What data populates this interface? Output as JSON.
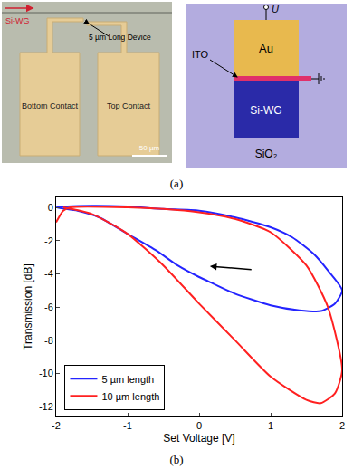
{
  "figure": {
    "panel_a": {
      "label": "(a)",
      "micrograph": {
        "waveguide": "Si-WG",
        "device": "5 µm Long Device",
        "bottom_contact": "Bottom Contact",
        "top_contact": "Top Contact",
        "scale_bar": "50 µm"
      },
      "schematic": {
        "voltage": "U",
        "electrode": "Au",
        "layer": "ITO",
        "waveguide": "Si-WG",
        "cladding": "SiO₂"
      }
    },
    "panel_b": {
      "label": "(b)"
    }
  },
  "chart_data": {
    "type": "line",
    "x_label": "Set Voltage [V]",
    "y_label": "Transmission [dB]",
    "xlim": [
      -2,
      2
    ],
    "xticks": [
      -2,
      -1,
      0,
      1,
      2
    ],
    "ylim": [
      -12.6,
      0.6
    ],
    "yticks": [
      -12,
      -10,
      -8,
      -6,
      -4,
      -2,
      0
    ],
    "legend": "lower left",
    "series": [
      {
        "name": "5 µm length",
        "color": "#2424ff",
        "x": [
          -2,
          -1.5,
          -1,
          -0.5,
          0,
          0.5,
          1.0,
          1.3,
          1.6,
          1.8,
          2.0,
          1.9,
          1.7,
          1.4,
          1.0,
          0.5,
          0.2,
          0,
          -0.3,
          -0.6,
          -1.0,
          -1.4,
          -1.7,
          -2
        ],
        "values": [
          0,
          0.1,
          0.05,
          -0.1,
          -0.2,
          -0.6,
          -1.2,
          -1.8,
          -2.8,
          -3.8,
          -5.0,
          -5.8,
          -6.25,
          -6.2,
          -5.9,
          -5.2,
          -4.6,
          -4.2,
          -3.5,
          -2.6,
          -1.6,
          -0.6,
          -0.2,
          0
        ]
      },
      {
        "name": "10 µm length",
        "color": "#ff2020",
        "x": [
          -2,
          -1.9,
          -1.8,
          -1,
          -0.5,
          0,
          0.5,
          1.0,
          1.5,
          1.8,
          2.0,
          1.9,
          1.7,
          1.5,
          1.0,
          0.5,
          0,
          -0.5,
          -1.0,
          -1.5,
          -1.9
        ],
        "values": [
          -0.9,
          -0.2,
          0,
          0,
          -0.1,
          -0.3,
          -0.7,
          -1.5,
          -3.5,
          -6.0,
          -9.8,
          -11.2,
          -11.8,
          -11.6,
          -10.2,
          -8.0,
          -5.8,
          -3.5,
          -1.6,
          -0.4,
          0
        ]
      }
    ]
  }
}
